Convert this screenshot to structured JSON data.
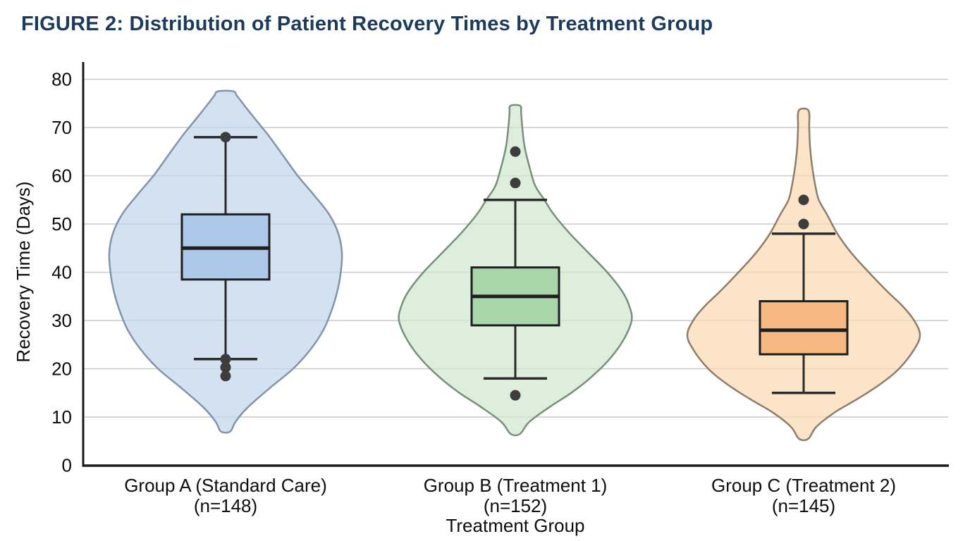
{
  "page": {
    "title": "FIGURE 2: Distribution of Patient Recovery Times by Treatment Group"
  },
  "colors": {
    "title": "#1c3a5e",
    "axis": "#1a1a1a",
    "grid": "#c9c9c9",
    "text": "#0d0d0d",
    "box_edge": "#1e1e1e",
    "whisker": "#2b2b2b",
    "outlier_dot": "#3d3d3d"
  },
  "chart_data": {
    "type": "violin-box",
    "title": "FIGURE 2: Distribution of Patient Recovery Times by Treatment Group",
    "xlabel": "Treatment Group",
    "ylabel": "Recovery Time (Days)",
    "ylim": [
      0,
      83
    ],
    "yticks": [
      0,
      10,
      20,
      30,
      40,
      50,
      60,
      70,
      80
    ],
    "grid": "horizontal",
    "legend": "none",
    "groups": [
      {
        "label": "Group A (Standard Care)",
        "sublabel": "(n=148)",
        "n": 148,
        "violin_fill": "#c3d5ec",
        "violin_edge": "#8194aa",
        "box_fill": "#aec8ea",
        "stats": {
          "whisker_low": 22,
          "q1": 38.5,
          "median": 45,
          "q3": 52,
          "whisker_high": 68
        },
        "outliers": [
          68,
          22,
          20.3,
          18.5
        ],
        "violin_range": [
          7,
          77.5
        ],
        "density_profile": [
          [
            7,
            0.04
          ],
          [
            9,
            0.085
          ],
          [
            12,
            0.19
          ],
          [
            16,
            0.38
          ],
          [
            20,
            0.58
          ],
          [
            24,
            0.73
          ],
          [
            28,
            0.84
          ],
          [
            32,
            0.91
          ],
          [
            36,
            0.96
          ],
          [
            40,
            0.99
          ],
          [
            44,
            1.0
          ],
          [
            48,
            0.97
          ],
          [
            52,
            0.89
          ],
          [
            56,
            0.76
          ],
          [
            60,
            0.62
          ],
          [
            64,
            0.5
          ],
          [
            68,
            0.38
          ],
          [
            71,
            0.28
          ],
          [
            74,
            0.18
          ],
          [
            76.5,
            0.1
          ],
          [
            77.5,
            0.065
          ]
        ]
      },
      {
        "label": "Group B (Treatment 1)",
        "sublabel": "(n=152)",
        "n": 152,
        "violin_fill": "#d0e7cf",
        "violin_edge": "#77907a",
        "box_fill": "#a8d5a9",
        "stats": {
          "whisker_low": 18,
          "q1": 29,
          "median": 35,
          "q3": 41,
          "whisker_high": 55
        },
        "outliers": [
          65,
          58.5,
          14.5
        ],
        "violin_range": [
          6.5,
          74.5
        ],
        "density_profile": [
          [
            6.5,
            0.04
          ],
          [
            9,
            0.12
          ],
          [
            12,
            0.29
          ],
          [
            15,
            0.48
          ],
          [
            18,
            0.64
          ],
          [
            22,
            0.81
          ],
          [
            26,
            0.93
          ],
          [
            30,
            1.0
          ],
          [
            33,
            0.98
          ],
          [
            36,
            0.92
          ],
          [
            40,
            0.79
          ],
          [
            44,
            0.63
          ],
          [
            48,
            0.47
          ],
          [
            52,
            0.33
          ],
          [
            55,
            0.25
          ],
          [
            58,
            0.17
          ],
          [
            62,
            0.12
          ],
          [
            66,
            0.08
          ],
          [
            70,
            0.06
          ],
          [
            73,
            0.05
          ],
          [
            74.5,
            0.042
          ]
        ]
      },
      {
        "label": "Group C (Treatment 2)",
        "sublabel": "(n=145)",
        "n": 145,
        "violin_fill": "#fbd9b4",
        "violin_edge": "#8e7d6c",
        "box_fill": "#f6b981",
        "stats": {
          "whisker_low": 15,
          "q1": 23,
          "median": 28,
          "q3": 34,
          "whisker_high": 48
        },
        "outliers": [
          55,
          50
        ],
        "violin_range": [
          5.5,
          73.5
        ],
        "density_profile": [
          [
            5.5,
            0.04
          ],
          [
            8,
            0.11
          ],
          [
            11,
            0.27
          ],
          [
            14,
            0.48
          ],
          [
            17,
            0.67
          ],
          [
            20,
            0.82
          ],
          [
            24,
            0.95
          ],
          [
            27,
            1.0
          ],
          [
            30,
            0.95
          ],
          [
            33,
            0.85
          ],
          [
            36,
            0.72
          ],
          [
            40,
            0.56
          ],
          [
            44,
            0.41
          ],
          [
            48,
            0.29
          ],
          [
            52,
            0.2
          ],
          [
            55,
            0.13
          ],
          [
            58,
            0.1
          ],
          [
            62,
            0.073
          ],
          [
            66,
            0.055
          ],
          [
            70,
            0.048
          ],
          [
            73.5,
            0.042
          ]
        ]
      }
    ]
  }
}
